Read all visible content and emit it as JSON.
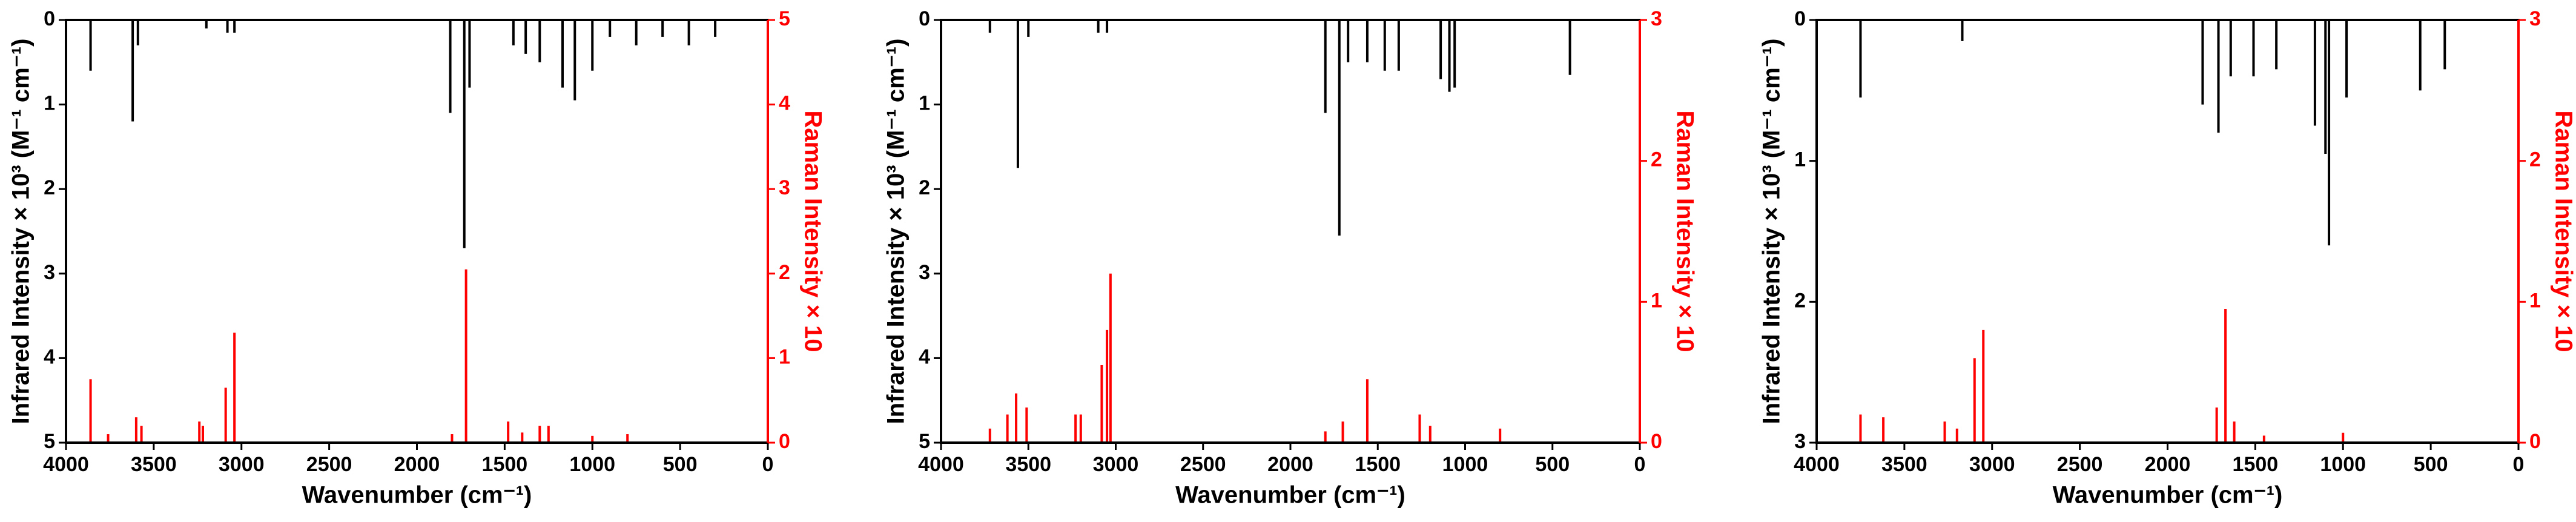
{
  "chart_data": [
    {
      "type": "stick",
      "xlabel": "Wavenumber (cm⁻¹)",
      "ylabel": "Infrared Intensity × 10³ (M⁻¹ cm⁻¹)",
      "y2label": "Raman Intensity × 10",
      "xlim": [
        4000,
        0
      ],
      "xticks": [
        4000,
        3500,
        3000,
        2500,
        2000,
        1500,
        1000,
        500,
        0
      ],
      "ylim": [
        5,
        0
      ],
      "yticks": [
        0,
        1,
        2,
        3,
        4,
        5
      ],
      "y2lim": [
        0,
        5
      ],
      "y2ticks": [
        0,
        1,
        2,
        3,
        4,
        5
      ],
      "series": [
        {
          "color": "#000000",
          "x": [
            3860,
            3620,
            3590,
            3200,
            3080,
            3040,
            1810,
            1730,
            1700,
            1450,
            1380,
            1300,
            1170,
            1100,
            1000,
            900,
            750,
            600,
            450,
            300
          ],
          "values": [
            0.6,
            1.2,
            0.3,
            0.1,
            0.15,
            0.15,
            1.1,
            2.7,
            0.8,
            0.3,
            0.4,
            0.5,
            0.8,
            0.95,
            0.6,
            0.2,
            0.3,
            0.2,
            0.3,
            0.2
          ]
        },
        {
          "color": "#ff0000",
          "axis": "y2",
          "x": [
            3860,
            3760,
            3600,
            3570,
            3240,
            3220,
            3090,
            3040,
            1800,
            1720,
            1480,
            1400,
            1300,
            1250,
            1000,
            800
          ],
          "values": [
            0.75,
            0.1,
            0.3,
            0.2,
            0.25,
            0.2,
            0.65,
            1.3,
            0.1,
            2.05,
            0.25,
            0.12,
            0.2,
            0.2,
            0.08,
            0.1
          ]
        }
      ]
    },
    {
      "type": "stick",
      "xlabel": "Wavenumber (cm⁻¹)",
      "ylabel": "Infrared Intensity × 10³ (M⁻¹ cm⁻¹)",
      "y2label": "Raman Intensity × 10",
      "xlim": [
        4000,
        0
      ],
      "xticks": [
        4000,
        3500,
        3000,
        2500,
        2000,
        1500,
        1000,
        500,
        0
      ],
      "ylim": [
        5,
        0
      ],
      "yticks": [
        0,
        1,
        2,
        3,
        4,
        5
      ],
      "y2lim": [
        0,
        3
      ],
      "y2ticks": [
        0,
        1,
        2,
        3
      ],
      "series": [
        {
          "color": "#000000",
          "x": [
            3720,
            3560,
            3500,
            3100,
            3050,
            1800,
            1720,
            1670,
            1560,
            1460,
            1380,
            1140,
            1090,
            1060,
            400
          ],
          "values": [
            0.15,
            1.75,
            0.2,
            0.15,
            0.15,
            1.1,
            2.55,
            0.5,
            0.5,
            0.6,
            0.6,
            0.7,
            0.85,
            0.8,
            0.65
          ]
        },
        {
          "color": "#ff0000",
          "axis": "y2",
          "x": [
            3720,
            3620,
            3570,
            3510,
            3230,
            3200,
            3080,
            3050,
            3030,
            1800,
            1700,
            1560,
            1260,
            1200,
            800
          ],
          "values": [
            0.1,
            0.2,
            0.35,
            0.25,
            0.2,
            0.2,
            0.55,
            0.8,
            1.2,
            0.08,
            0.15,
            0.45,
            0.2,
            0.12,
            0.1
          ]
        }
      ]
    },
    {
      "type": "stick",
      "xlabel": "Wavenumber (cm⁻¹)",
      "ylabel": "Infrared Intensity × 10³ (M⁻¹ cm⁻¹)",
      "y2label": "Raman Intensity × 10",
      "xlim": [
        4000,
        0
      ],
      "xticks": [
        4000,
        3500,
        3000,
        2500,
        2000,
        1500,
        1000,
        500,
        0
      ],
      "ylim": [
        3,
        0
      ],
      "yticks": [
        0,
        1,
        2,
        3
      ],
      "y2lim": [
        0,
        3
      ],
      "y2ticks": [
        0,
        1,
        2,
        3
      ],
      "series": [
        {
          "color": "#000000",
          "x": [
            3750,
            3170,
            1800,
            1710,
            1640,
            1510,
            1380,
            1160,
            1100,
            1080,
            980,
            560,
            420
          ],
          "values": [
            0.55,
            0.15,
            0.6,
            0.8,
            0.4,
            0.4,
            0.35,
            0.75,
            0.95,
            1.6,
            0.55,
            0.5,
            0.35
          ]
        },
        {
          "color": "#ff0000",
          "axis": "y2",
          "x": [
            3750,
            3620,
            3270,
            3200,
            3100,
            3050,
            1720,
            1670,
            1620,
            1450,
            1000
          ],
          "values": [
            0.2,
            0.18,
            0.15,
            0.1,
            0.6,
            0.8,
            0.25,
            0.95,
            0.15,
            0.05,
            0.07
          ]
        }
      ]
    }
  ]
}
